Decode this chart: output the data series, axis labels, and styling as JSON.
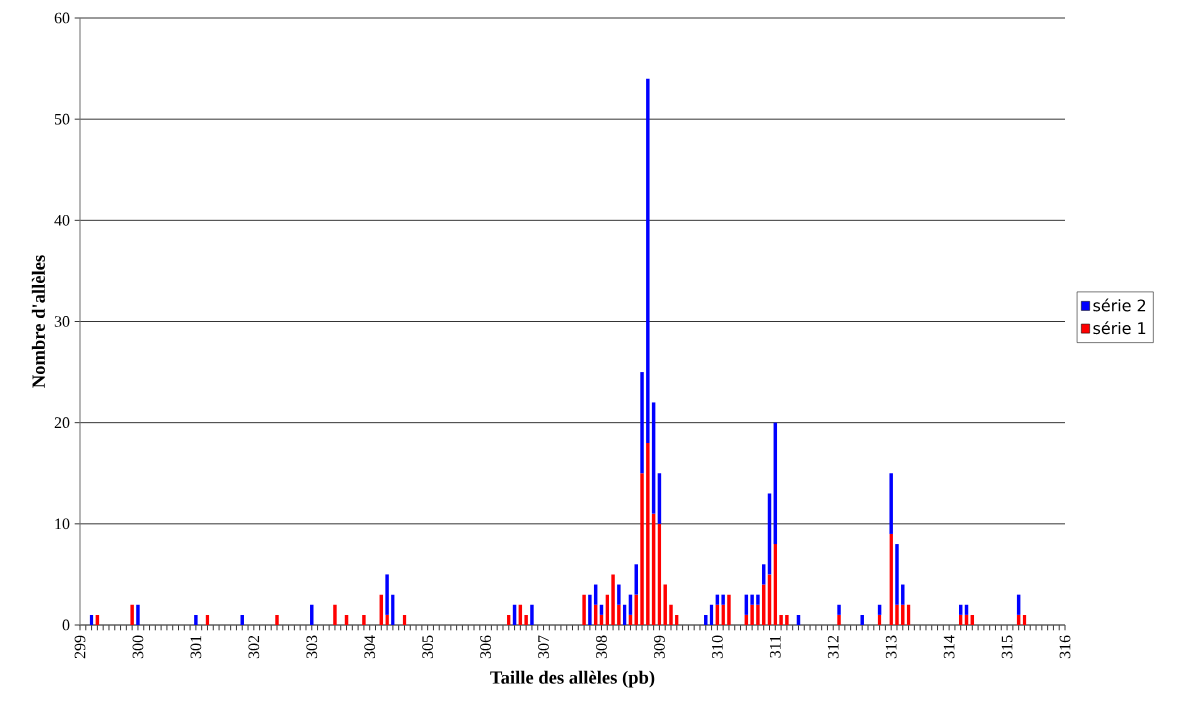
{
  "chart_data": {
    "type": "bar",
    "stacked": true,
    "xlabel": "Taille des allèles (pb)",
    "ylabel": "Nombre d'allèles",
    "categories": [
      "299",
      null,
      null,
      null,
      null,
      null,
      null,
      null,
      null,
      null,
      "300",
      null,
      null,
      null,
      null,
      null,
      null,
      null,
      null,
      null,
      "301",
      null,
      null,
      null,
      null,
      null,
      null,
      null,
      null,
      null,
      "302",
      null,
      null,
      null,
      null,
      null,
      null,
      null,
      null,
      null,
      "303",
      null,
      null,
      null,
      null,
      null,
      null,
      null,
      null,
      null,
      "304",
      null,
      null,
      null,
      null,
      null,
      null,
      null,
      null,
      null,
      "305",
      null,
      null,
      null,
      null,
      null,
      null,
      null,
      null,
      null,
      "306",
      null,
      null,
      null,
      null,
      null,
      null,
      null,
      null,
      null,
      "307",
      null,
      null,
      null,
      null,
      null,
      null,
      null,
      null,
      null,
      "308",
      null,
      null,
      null,
      null,
      null,
      null,
      null,
      null,
      null,
      "309",
      null,
      null,
      null,
      null,
      null,
      null,
      null,
      null,
      null,
      "310",
      null,
      null,
      null,
      null,
      null,
      null,
      null,
      null,
      null,
      "311",
      null,
      null,
      null,
      null,
      null,
      null,
      null,
      null,
      null,
      "312",
      null,
      null,
      null,
      null,
      null,
      null,
      null,
      null,
      null,
      "313",
      null,
      null,
      null,
      null,
      null,
      null,
      null,
      null,
      null,
      "314",
      null,
      null,
      null,
      null,
      null,
      null,
      null,
      null,
      null,
      "315",
      null,
      null,
      null,
      null,
      null,
      null,
      null,
      null,
      null,
      "316"
    ],
    "series": [
      {
        "name": "série 1",
        "color": "#ff0000",
        "values": [
          0,
          0,
          0,
          1,
          0,
          0,
          0,
          0,
          0,
          2,
          0,
          0,
          0,
          0,
          0,
          0,
          0,
          0,
          0,
          0,
          0,
          0,
          1,
          0,
          0,
          0,
          0,
          0,
          0,
          0,
          0,
          0,
          0,
          0,
          1,
          0,
          0,
          0,
          0,
          0,
          0,
          0,
          0,
          0,
          2,
          0,
          1,
          0,
          0,
          1,
          0,
          0,
          3,
          1,
          0,
          0,
          1,
          0,
          0,
          0,
          0,
          0,
          0,
          0,
          0,
          0,
          0,
          0,
          0,
          0,
          0,
          0,
          0,
          0,
          1,
          0,
          2,
          1,
          0,
          0,
          0,
          0,
          0,
          0,
          0,
          0,
          0,
          3,
          0,
          2,
          1,
          3,
          5,
          2,
          0,
          1,
          3,
          15,
          18,
          11,
          10,
          4,
          2,
          1,
          0,
          0,
          0,
          0,
          0,
          0,
          2,
          2,
          3,
          0,
          0,
          1,
          2,
          2,
          4,
          5,
          8,
          1,
          1,
          0,
          0,
          0,
          0,
          0,
          0,
          0,
          0,
          1,
          0,
          0,
          0,
          0,
          0,
          0,
          1,
          0,
          9,
          2,
          2,
          2,
          0,
          0,
          0,
          0,
          0,
          0,
          0,
          0,
          1,
          1,
          1,
          0,
          0,
          0,
          0,
          0,
          0,
          0,
          1,
          1,
          0,
          0,
          0,
          0,
          0,
          0,
          0
        ]
      },
      {
        "name": "série 2",
        "color": "#0000ff",
        "values": [
          0,
          0,
          1,
          0,
          0,
          0,
          0,
          0,
          0,
          0,
          2,
          0,
          0,
          0,
          0,
          0,
          0,
          0,
          0,
          0,
          1,
          0,
          0,
          0,
          0,
          0,
          0,
          0,
          1,
          0,
          0,
          0,
          0,
          0,
          0,
          0,
          0,
          0,
          0,
          0,
          2,
          0,
          0,
          0,
          0,
          0,
          0,
          0,
          0,
          0,
          0,
          0,
          0,
          4,
          3,
          0,
          0,
          0,
          0,
          0,
          0,
          0,
          0,
          0,
          0,
          0,
          0,
          0,
          0,
          0,
          0,
          0,
          0,
          0,
          0,
          2,
          0,
          0,
          2,
          0,
          0,
          0,
          0,
          0,
          0,
          0,
          0,
          0,
          3,
          2,
          1,
          0,
          0,
          2,
          2,
          2,
          3,
          10,
          36,
          11,
          5,
          0,
          0,
          0,
          0,
          0,
          0,
          0,
          1,
          2,
          1,
          1,
          0,
          0,
          0,
          2,
          1,
          1,
          2,
          8,
          12,
          0,
          0,
          0,
          1,
          0,
          0,
          0,
          0,
          0,
          0,
          1,
          0,
          0,
          0,
          1,
          0,
          0,
          1,
          0,
          6,
          6,
          2,
          0,
          0,
          0,
          0,
          0,
          0,
          0,
          0,
          0,
          1,
          1,
          0,
          0,
          0,
          0,
          0,
          0,
          0,
          0,
          2,
          0,
          0,
          0,
          0,
          0,
          0,
          0,
          0
        ]
      }
    ],
    "ylim": [
      0,
      60
    ],
    "yticks": [
      0,
      10,
      20,
      30,
      40,
      50,
      60
    ],
    "grid": "y",
    "legend": "right"
  }
}
